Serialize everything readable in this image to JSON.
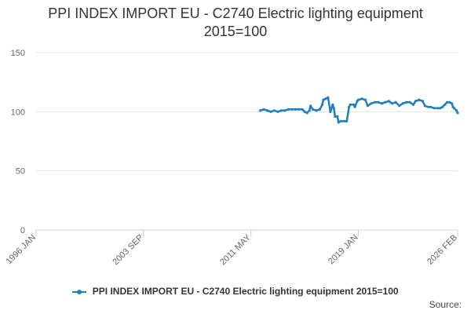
{
  "chart_data": {
    "type": "line",
    "title": "PPI INDEX IMPORT EU - C2740 Electric lighting equipment",
    "subtitle": "2015=100",
    "xlabel": "",
    "ylabel": "",
    "xlim": [
      "1996-01",
      "2026-02"
    ],
    "ylim": [
      0,
      150
    ],
    "yticks": [
      0,
      50,
      100,
      150
    ],
    "xticks": [
      {
        "date": "1996-01",
        "label": "1996 JAN"
      },
      {
        "date": "2003-09",
        "label": "2003 SEP"
      },
      {
        "date": "2011-05",
        "label": "2011 MAY"
      },
      {
        "date": "2019-01",
        "label": "2019 JAN"
      },
      {
        "date": "2026-02",
        "label": "2026 FEB"
      }
    ],
    "grid": true,
    "legend_position": "bottom",
    "series": [
      {
        "name": "PPI INDEX IMPORT EU - C2740 Electric lighting equipment 2015=100",
        "color": "#1f7fc1",
        "points": [
          [
            "2012-01",
            101
          ],
          [
            "2012-04",
            102
          ],
          [
            "2012-07",
            101
          ],
          [
            "2012-10",
            100
          ],
          [
            "2013-01",
            101
          ],
          [
            "2013-04",
            100
          ],
          [
            "2013-07",
            101
          ],
          [
            "2013-10",
            101
          ],
          [
            "2014-01",
            102
          ],
          [
            "2014-04",
            102
          ],
          [
            "2014-07",
            102
          ],
          [
            "2014-10",
            102
          ],
          [
            "2015-01",
            102
          ],
          [
            "2015-03",
            100
          ],
          [
            "2015-05",
            99
          ],
          [
            "2015-07",
            101
          ],
          [
            "2015-08",
            105
          ],
          [
            "2015-10",
            102
          ],
          [
            "2016-01",
            101
          ],
          [
            "2016-04",
            102
          ],
          [
            "2016-06",
            106
          ],
          [
            "2016-07",
            110
          ],
          [
            "2016-09",
            111
          ],
          [
            "2016-11",
            112
          ],
          [
            "2017-01",
            100
          ],
          [
            "2017-03",
            106
          ],
          [
            "2017-04",
            103
          ],
          [
            "2017-05",
            96
          ],
          [
            "2017-07",
            96
          ],
          [
            "2017-08",
            91
          ],
          [
            "2017-10",
            92
          ],
          [
            "2018-01",
            92
          ],
          [
            "2018-03",
            92
          ],
          [
            "2018-05",
            104
          ],
          [
            "2018-06",
            106
          ],
          [
            "2018-09",
            106
          ],
          [
            "2018-10",
            104
          ],
          [
            "2018-12",
            109
          ],
          [
            "2019-01",
            110
          ],
          [
            "2019-04",
            111
          ],
          [
            "2019-07",
            110
          ],
          [
            "2019-09",
            105
          ],
          [
            "2019-12",
            107
          ],
          [
            "2020-03",
            108
          ],
          [
            "2020-06",
            108
          ],
          [
            "2020-09",
            107
          ],
          [
            "2020-12",
            108
          ],
          [
            "2021-03",
            109
          ],
          [
            "2021-06",
            107
          ],
          [
            "2021-09",
            108
          ],
          [
            "2021-12",
            105
          ],
          [
            "2022-03",
            107
          ],
          [
            "2022-06",
            108
          ],
          [
            "2022-09",
            108
          ],
          [
            "2022-12",
            106
          ],
          [
            "2023-02",
            109
          ],
          [
            "2023-05",
            110
          ],
          [
            "2023-08",
            109
          ],
          [
            "2023-10",
            105
          ],
          [
            "2024-01",
            104
          ],
          [
            "2024-03",
            104
          ],
          [
            "2024-06",
            103
          ],
          [
            "2024-09",
            103
          ],
          [
            "2024-11",
            103
          ],
          [
            "2025-01",
            104
          ],
          [
            "2025-03",
            106
          ],
          [
            "2025-05",
            108
          ],
          [
            "2025-07",
            108
          ],
          [
            "2025-09",
            107
          ],
          [
            "2025-10",
            104
          ],
          [
            "2025-11",
            103
          ],
          [
            "2026-01",
            101
          ],
          [
            "2026-02",
            99
          ]
        ]
      }
    ]
  },
  "legend": {
    "label": "PPI INDEX IMPORT EU - C2740 Electric lighting equipment 2015=100"
  },
  "source": {
    "label": "Source:"
  }
}
